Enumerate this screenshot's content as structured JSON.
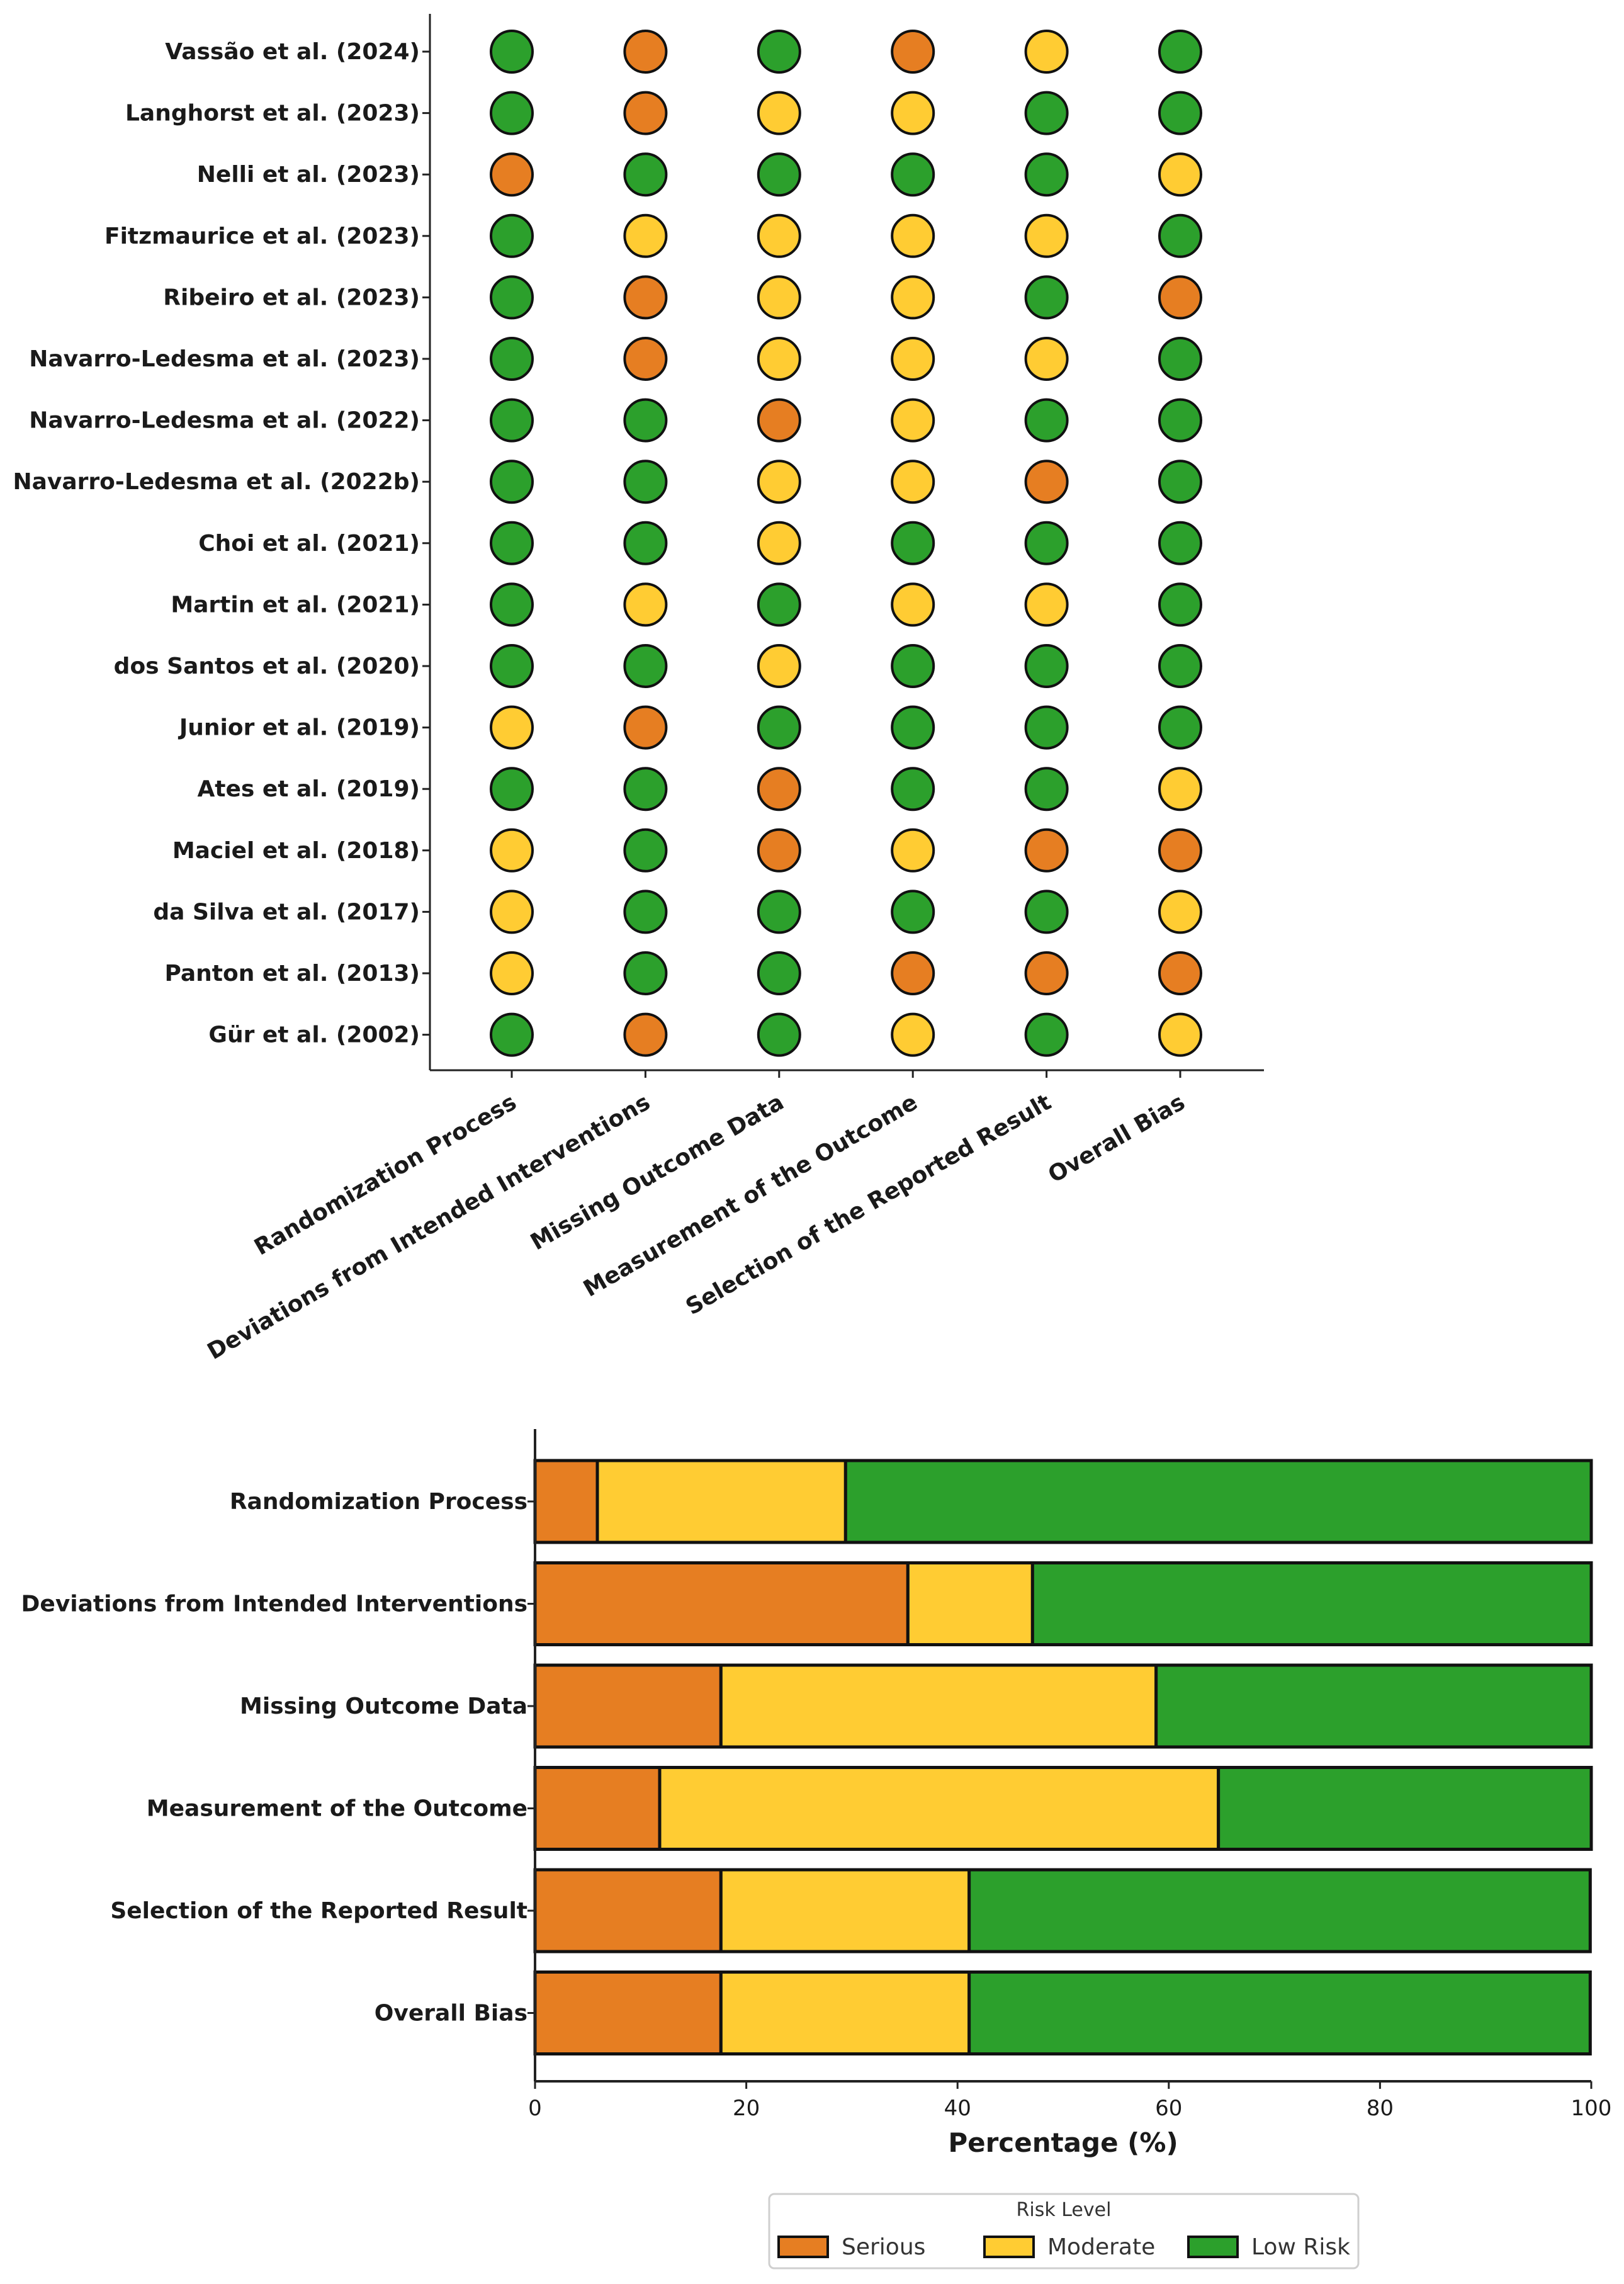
{
  "colors": {
    "serious": "#E67E22",
    "moderate": "#FFCC33",
    "low": "#2CA02C",
    "outline": "#111111"
  },
  "chart_data": [
    {
      "type": "traffic-light",
      "rows": [
        "Vassão et al. (2024)",
        "Langhorst et al. (2023)",
        "Nelli et al. (2023)",
        "Fitzmaurice et al. (2023)",
        "Ribeiro et al. (2023)",
        "Navarro-Ledesma et al. (2023)",
        "Navarro-Ledesma et al. (2022)",
        "Navarro-Ledesma et al. (2022b)",
        "Choi et al. (2021)",
        "Martin et al. (2021)",
        "dos Santos et al. (2020)",
        "Junior et al. (2019)",
        "Ates et al. (2019)",
        "Maciel et al. (2018)",
        "da Silva et al. (2017)",
        "Panton et al. (2013)",
        "Gür et al. (2002)"
      ],
      "columns": [
        "Randomization Process",
        "Deviations from Intended Interventions",
        "Missing Outcome Data",
        "Measurement of the Outcome",
        "Selection of the Reported Result",
        "Overall Bias"
      ],
      "ratings": [
        [
          "low",
          "serious",
          "low",
          "serious",
          "moderate",
          "low"
        ],
        [
          "low",
          "serious",
          "moderate",
          "moderate",
          "low",
          "low"
        ],
        [
          "serious",
          "low",
          "low",
          "low",
          "low",
          "moderate"
        ],
        [
          "low",
          "moderate",
          "moderate",
          "moderate",
          "moderate",
          "low"
        ],
        [
          "low",
          "serious",
          "moderate",
          "moderate",
          "low",
          "serious"
        ],
        [
          "low",
          "serious",
          "moderate",
          "moderate",
          "moderate",
          "low"
        ],
        [
          "low",
          "low",
          "serious",
          "moderate",
          "low",
          "low"
        ],
        [
          "low",
          "low",
          "moderate",
          "moderate",
          "serious",
          "low"
        ],
        [
          "low",
          "low",
          "moderate",
          "low",
          "low",
          "low"
        ],
        [
          "low",
          "moderate",
          "low",
          "moderate",
          "moderate",
          "low"
        ],
        [
          "low",
          "low",
          "moderate",
          "low",
          "low",
          "low"
        ],
        [
          "moderate",
          "serious",
          "low",
          "low",
          "low",
          "low"
        ],
        [
          "low",
          "low",
          "serious",
          "low",
          "low",
          "moderate"
        ],
        [
          "moderate",
          "low",
          "serious",
          "moderate",
          "serious",
          "serious"
        ],
        [
          "moderate",
          "low",
          "low",
          "low",
          "low",
          "moderate"
        ],
        [
          "moderate",
          "low",
          "low",
          "serious",
          "serious",
          "serious"
        ],
        [
          "low",
          "serious",
          "low",
          "moderate",
          "low",
          "moderate"
        ]
      ]
    },
    {
      "type": "bar",
      "orientation": "horizontal",
      "stacked": true,
      "categories": [
        "Randomization Process",
        "Deviations from Intended Interventions",
        "Missing Outcome Data",
        "Measurement of the Outcome",
        "Selection of the Reported Result",
        "Overall Bias"
      ],
      "series": [
        {
          "name": "Serious",
          "key": "serious",
          "values": [
            5.9,
            35.3,
            17.6,
            11.8,
            17.6,
            17.6
          ]
        },
        {
          "name": "Moderate",
          "key": "moderate",
          "values": [
            23.5,
            11.8,
            41.2,
            52.9,
            23.5,
            23.5
          ]
        },
        {
          "name": "Low Risk",
          "key": "low",
          "values": [
            70.6,
            52.9,
            41.2,
            35.3,
            58.8,
            58.8
          ]
        }
      ],
      "xlabel": "Percentage (%)",
      "xlim": [
        0,
        100
      ],
      "xticks": [
        0,
        20,
        40,
        60,
        80,
        100
      ],
      "legend": {
        "title": "Risk Level",
        "position": "bottom-center",
        "entries": [
          "Serious",
          "Moderate",
          "Low Risk"
        ]
      }
    }
  ]
}
